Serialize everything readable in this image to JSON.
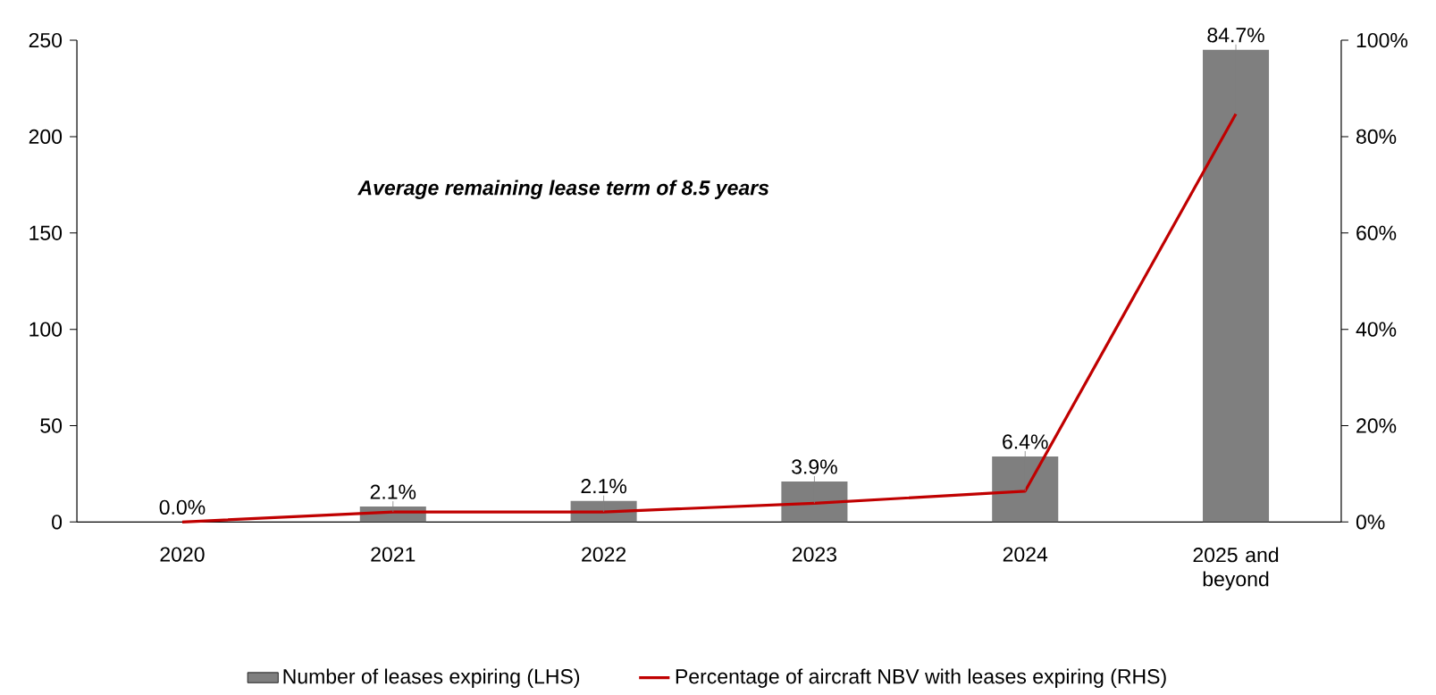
{
  "chart_data": {
    "type": "bar",
    "categories": [
      "2020",
      "2021",
      "2022",
      "2023",
      "2024",
      "2025 and beyond"
    ],
    "series": [
      {
        "name": "Number of leases expiring (LHS)",
        "color": "#7f7f7f",
        "values": [
          0,
          8,
          11,
          21,
          34,
          245
        ]
      },
      {
        "name": "Percentage of aircraft NBV with leases expiring (RHS)",
        "type": "line",
        "axis": "y2",
        "color": "#c00000",
        "values": [
          0.0,
          2.1,
          2.1,
          3.9,
          6.4,
          84.7
        ],
        "value_labels": [
          "0.0%",
          "2.1%",
          "2.1%",
          "3.9%",
          "6.4%",
          "84.7%"
        ]
      }
    ],
    "ylim": [
      0,
      250
    ],
    "yticks": [
      0,
      50,
      100,
      150,
      200,
      250
    ],
    "y2lim": [
      0,
      100
    ],
    "y2ticks": [
      {
        "value": 0,
        "label": "0%"
      },
      {
        "value": 20,
        "label": "20%"
      },
      {
        "value": 40,
        "label": "40%"
      },
      {
        "value": 60,
        "label": "60%"
      },
      {
        "value": 80,
        "label": "80%"
      },
      {
        "value": 100,
        "label": "100%"
      }
    ],
    "annotations": [
      "Average remaining lease term of 8.5 years"
    ],
    "legend": "bottom",
    "grid": false,
    "marker": "none",
    "line_style": "solid"
  }
}
